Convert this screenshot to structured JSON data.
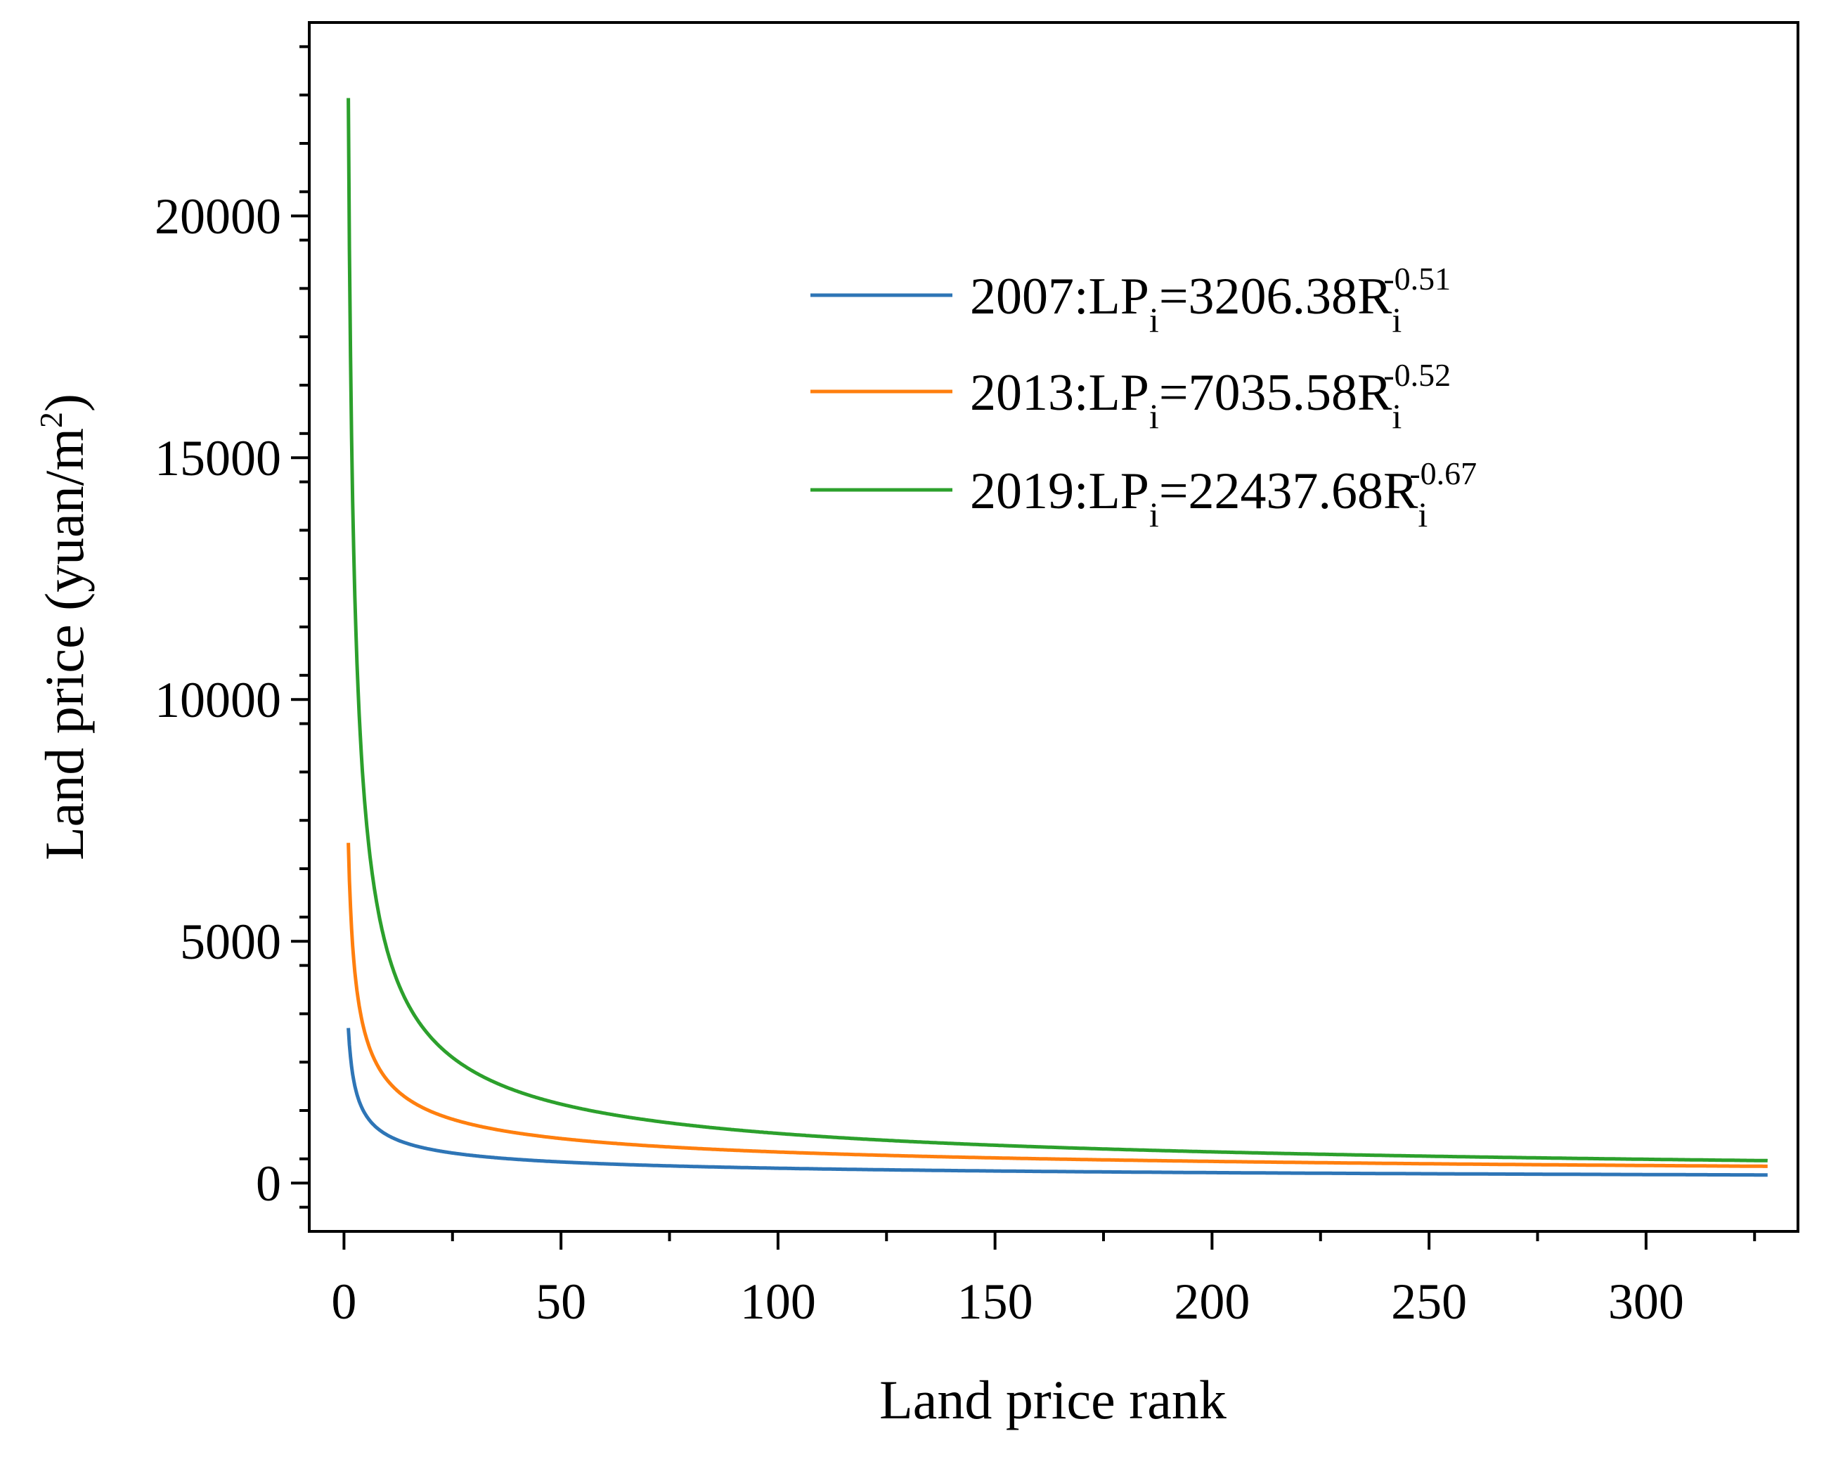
{
  "chart_data": {
    "type": "line",
    "title": "",
    "xlabel": "Land price rank",
    "ylabel": "Land price (yuan/m",
    "ylabel_sup": "2",
    "ylabel_end": ")",
    "xlim": [
      -8,
      335
    ],
    "ylim": [
      -1000,
      24000
    ],
    "x_ticks": [
      0,
      50,
      100,
      150,
      200,
      250,
      300
    ],
    "x_tick_labels": [
      "0",
      "50",
      "100",
      "150",
      "200",
      "250",
      "300"
    ],
    "y_ticks": [
      0,
      5000,
      10000,
      15000,
      20000
    ],
    "y_tick_labels": [
      "0",
      "5000",
      "10000",
      "15000",
      "20000"
    ],
    "x_range": [
      1,
      328
    ],
    "grid": false,
    "legend_position": "top-right",
    "series": [
      {
        "name": "2007",
        "color": "#2e75b6",
        "coefficient": 3206.38,
        "exponent": -0.51,
        "label_prefix": "2007:LP",
        "label_sub": "i",
        "label_mid": "=3206.38R",
        "label_sub2": "i",
        "label_sup": "-0.51"
      },
      {
        "name": "2013",
        "color": "#ff7f0e",
        "coefficient": 7035.58,
        "exponent": -0.52,
        "label_prefix": "2013:LP",
        "label_sub": "i",
        "label_mid": "=7035.58R",
        "label_sub2": "i",
        "label_sup": "-0.52"
      },
      {
        "name": "2019",
        "color": "#2ca02c",
        "coefficient": 22437.68,
        "exponent": -0.67,
        "label_prefix": "2019:LP",
        "label_sub": "i",
        "label_mid": "=22437.68R",
        "label_sub2": "i",
        "label_sup": "-0.67"
      }
    ]
  }
}
